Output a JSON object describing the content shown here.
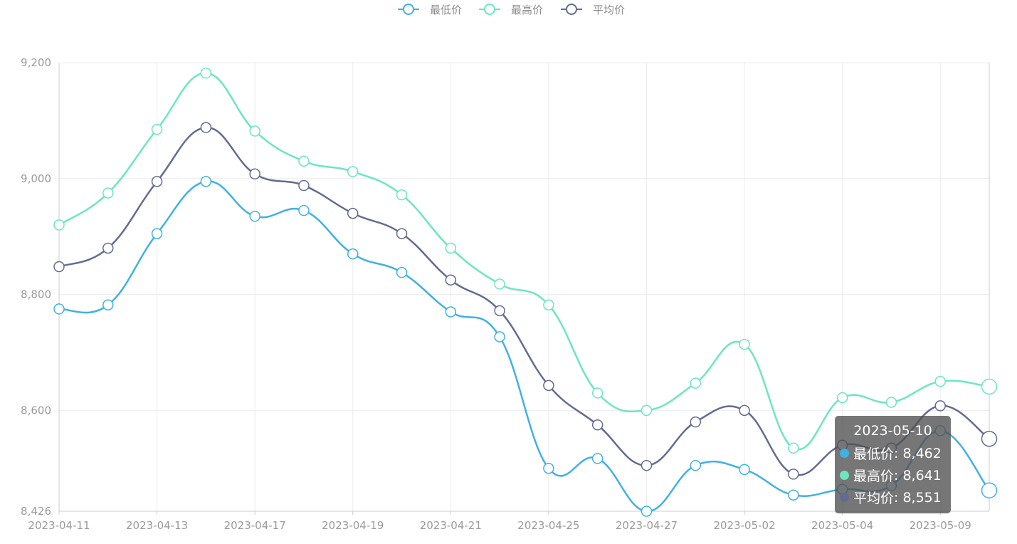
{
  "legend": {
    "items": [
      {
        "label": "最低价",
        "color": "#3fb1e3"
      },
      {
        "label": "最高价",
        "color": "#6be6c1"
      },
      {
        "label": "平均价",
        "color": "#626c91"
      }
    ]
  },
  "tooltip": {
    "title": "2023-05-10",
    "rows": [
      {
        "name": "最低价",
        "value": "8,462",
        "color": "#3fb1e3"
      },
      {
        "name": "最高价",
        "value": "8,641",
        "color": "#6be6c1"
      },
      {
        "name": "平均价",
        "value": "8,551",
        "color": "#626c91"
      }
    ]
  },
  "chart_data": {
    "type": "line",
    "smooth": true,
    "categories": [
      "2023-04-11",
      "2023-04-12",
      "2023-04-13",
      "2023-04-14",
      "2023-04-17",
      "2023-04-18",
      "2023-04-19",
      "2023-04-20",
      "2023-04-21",
      "2023-04-24",
      "2023-04-25",
      "2023-04-26",
      "2023-04-27",
      "2023-04-28",
      "2023-05-02",
      "2023-05-03",
      "2023-05-04",
      "2023-05-05",
      "2023-05-09",
      "2023-05-10"
    ],
    "x_tick_labels": [
      "2023-04-11",
      "2023-04-13",
      "2023-04-17",
      "2023-04-19",
      "2023-04-21",
      "2023-04-25",
      "2023-04-27",
      "2023-05-02",
      "2023-05-04",
      "2023-05-09"
    ],
    "y_tick_labels": [
      "8,426",
      "8,600",
      "8,800",
      "9,000",
      "9,200"
    ],
    "y_ticks": [
      8426,
      8600,
      8800,
      9000,
      9200
    ],
    "ylim": [
      8426,
      9200
    ],
    "grid": true,
    "legend_position": "top-center",
    "series": [
      {
        "name": "最低价",
        "color": "#3fb1e3",
        "values": [
          8775,
          8782,
          8905,
          8995,
          8935,
          8945,
          8870,
          8838,
          8770,
          8727,
          8500,
          8517,
          8426,
          8505,
          8498,
          8454,
          8464,
          8470,
          8565,
          8462
        ]
      },
      {
        "name": "最高价",
        "color": "#6be6c1",
        "values": [
          8920,
          8975,
          9085,
          9182,
          9082,
          9030,
          9012,
          8972,
          8880,
          8818,
          8782,
          8630,
          8600,
          8647,
          8714,
          8535,
          8622,
          8614,
          8650,
          8641
        ]
      },
      {
        "name": "平均价",
        "color": "#626c91",
        "values": [
          8848,
          8880,
          8995,
          9088,
          9008,
          8988,
          8940,
          8905,
          8825,
          8772,
          8643,
          8575,
          8505,
          8580,
          8600,
          8490,
          8540,
          8535,
          8608,
          8551
        ]
      }
    ]
  }
}
